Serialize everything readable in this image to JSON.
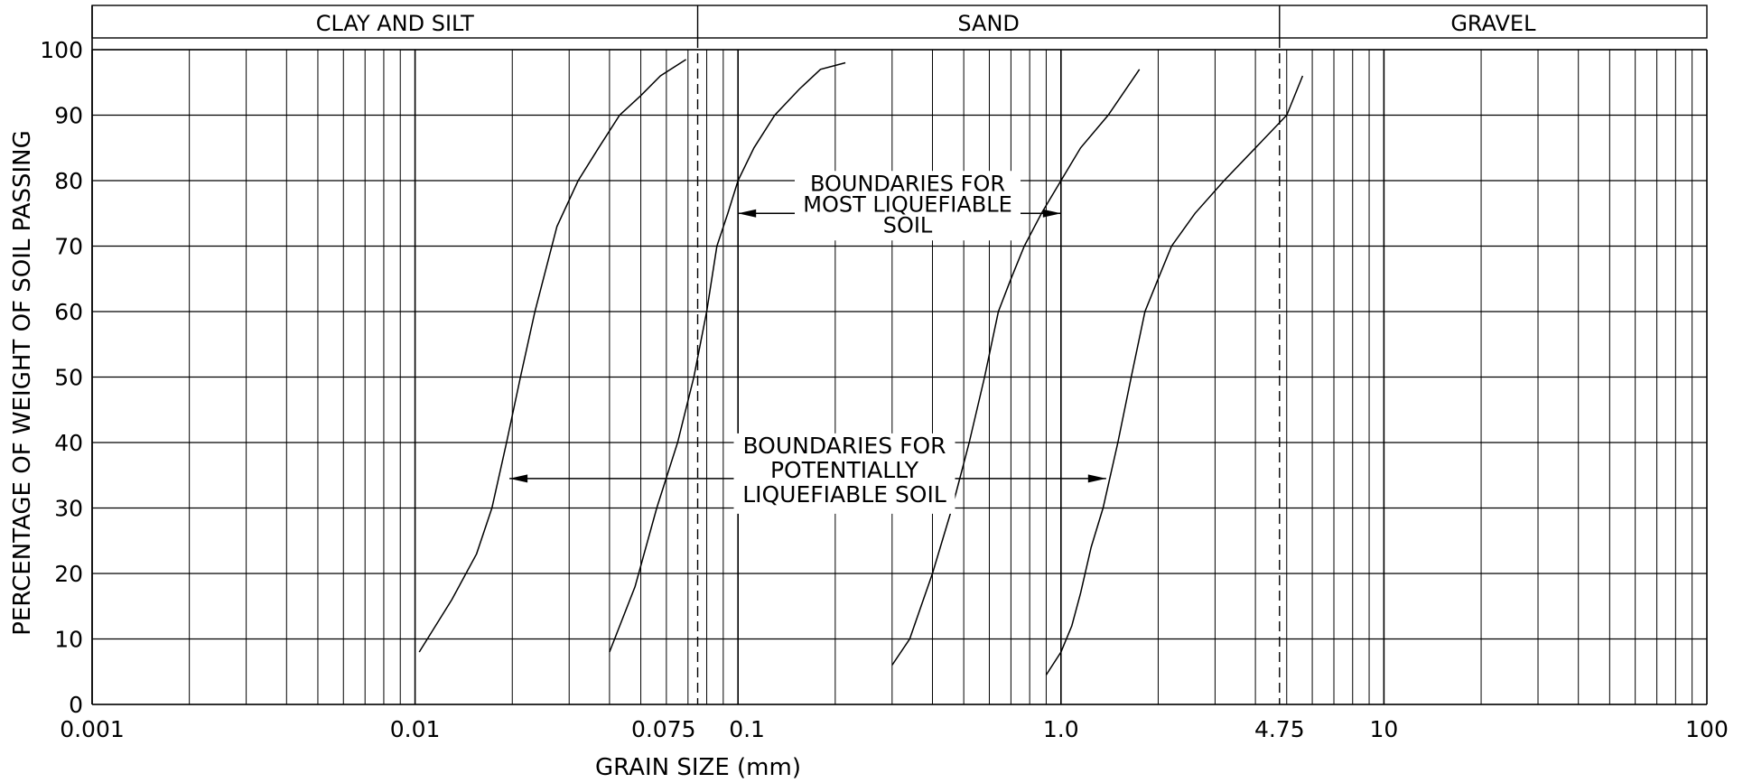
{
  "chart_data": {
    "type": "line",
    "x_scale": "log",
    "xlim": [
      0.001,
      100
    ],
    "ylim": [
      0,
      100
    ],
    "xlabel": "GRAIN SIZE (mm)",
    "ylabel": "PERCENTAGE OF WEIGHT OF SOIL PASSING",
    "grid": true,
    "zones": [
      "CLAY AND SILT",
      "SAND",
      "GRAVEL"
    ],
    "zone_boundaries": [
      0.075,
      4.75
    ],
    "x_tick_labels": [
      {
        "x": 0.001,
        "label": "0.001"
      },
      {
        "x": 0.01,
        "label": "0.01"
      },
      {
        "x": 0.075,
        "label": "0.075"
      },
      {
        "x": 0.1,
        "label": "0.1"
      },
      {
        "x": 1.0,
        "label": "1.0"
      },
      {
        "x": 4.75,
        "label": "4.75"
      },
      {
        "x": 10,
        "label": "10"
      },
      {
        "x": 100,
        "label": "100"
      }
    ],
    "y_ticks": [
      0,
      10,
      20,
      30,
      40,
      50,
      60,
      70,
      80,
      90,
      100
    ],
    "series": [
      {
        "x": [
          0.0103,
          0.013,
          0.0155,
          0.0173,
          0.0192,
          0.0212,
          0.0235,
          0.0275,
          0.032,
          0.037,
          0.043,
          0.05,
          0.0575,
          0.069
        ],
        "y": [
          8,
          16,
          23,
          30,
          40,
          50,
          60,
          73,
          80,
          85,
          90,
          93,
          96,
          98.5
        ]
      },
      {
        "x": [
          0.04,
          0.048,
          0.056,
          0.065,
          0.073,
          0.08,
          0.086,
          0.093,
          0.1,
          0.112,
          0.13,
          0.155,
          0.18,
          0.215
        ],
        "y": [
          8,
          18,
          30,
          40,
          50,
          60,
          70,
          75,
          80,
          85,
          90,
          94,
          97,
          98
        ]
      },
      {
        "x": [
          0.3,
          0.34,
          0.4,
          0.46,
          0.52,
          0.58,
          0.64,
          0.7,
          0.77,
          0.87,
          1.0,
          1.15,
          1.4,
          1.75
        ],
        "y": [
          6,
          10,
          20,
          30,
          40,
          50,
          60,
          65,
          70,
          75,
          80,
          85,
          90,
          97
        ]
      },
      {
        "x": [
          0.9,
          1.0,
          1.08,
          1.15,
          1.24,
          1.35,
          1.5,
          1.65,
          1.82,
          2.0,
          2.2,
          2.6,
          3.2,
          4.0,
          5.0,
          5.6
        ],
        "y": [
          4.5,
          8,
          12,
          17,
          24,
          30,
          40,
          50,
          60,
          65,
          70,
          75,
          80,
          85,
          90,
          96
        ]
      }
    ],
    "annotations": [
      {
        "lines": [
          "BOUNDARIES FOR",
          "MOST LIQUEFIABLE",
          "SOIL"
        ],
        "arrow_y": 75,
        "arrow_from": 0.1,
        "arrow_to": 1.0
      },
      {
        "lines": [
          "BOUNDARIES FOR",
          "POTENTIALLY",
          "LIQUEFIABLE SOIL"
        ],
        "arrow_y": 34.5,
        "arrow_from": 0.0196,
        "arrow_to": 1.38
      }
    ]
  }
}
